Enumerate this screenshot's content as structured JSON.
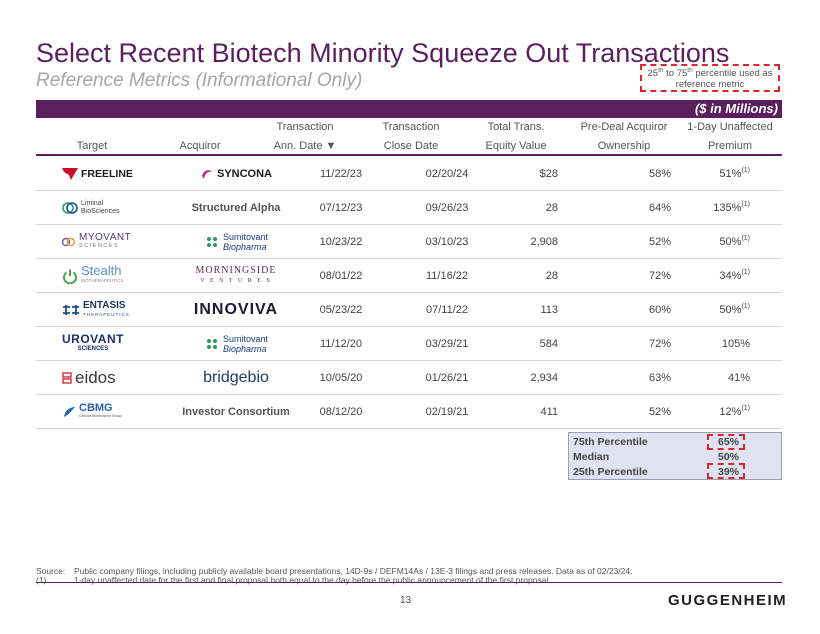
{
  "title": "Select Recent Biotech Minority Squeeze Out Transactions",
  "subtitle": "Reference Metrics (Informational Only)",
  "callout": {
    "part1": "25",
    "sup1": "th",
    "part2": " to 75",
    "sup2": "th",
    "part3": " percentile used as reference metric"
  },
  "units_label": "($ in Millions)",
  "columns": {
    "target": "Target",
    "acquiror": "Acquiror",
    "ann_date": [
      "Transaction",
      "Ann. Date ▼"
    ],
    "close_date": [
      "Transaction",
      "Close Date"
    ],
    "equity": [
      "Total Trans.",
      "Equity Value"
    ],
    "ownership": [
      "Pre-Deal Acquiror",
      "Ownership"
    ],
    "premium": [
      "1-Day Unaffected",
      "Premium"
    ]
  },
  "rows": [
    {
      "target": "FREELINE",
      "target_sub": "",
      "acquiror": "SYNCONA",
      "acq_sub": "",
      "ann_date": "11/22/23",
      "close_date": "02/20/24",
      "equity": "$28",
      "ownership": "58%",
      "premium": "51%",
      "fn": "(1)"
    },
    {
      "target": "Liminal",
      "target_sub": "BioSciences",
      "acquiror": "Structured Alpha",
      "acq_sub": "",
      "ann_date": "07/12/23",
      "close_date": "09/26/23",
      "equity": "28",
      "ownership": "64%",
      "premium": "135%",
      "fn": "(1)"
    },
    {
      "target": "MYOVANT",
      "target_sub": "SCIENCES",
      "acquiror": "Sumitovant",
      "acq_sub": "Biopharma",
      "ann_date": "10/23/22",
      "close_date": "03/10/23",
      "equity": "2,908",
      "ownership": "52%",
      "premium": "50%",
      "fn": "(1)"
    },
    {
      "target": "Stealth",
      "target_sub": "BIOTHERAPEUTICS",
      "acquiror": "MORNINGSIDE",
      "acq_sub": "V E N T U R E S",
      "ann_date": "08/01/22",
      "close_date": "11/16/22",
      "equity": "28",
      "ownership": "72%",
      "premium": "34%",
      "fn": "(1)"
    },
    {
      "target": "ENTASIS",
      "target_sub": "THERAPEUTICS",
      "acquiror": "INNOVIVA",
      "acq_sub": "",
      "ann_date": "05/23/22",
      "close_date": "07/11/22",
      "equity": "113",
      "ownership": "60%",
      "premium": "50%",
      "fn": "(1)"
    },
    {
      "target": "UROVANT",
      "target_sub": "SCIENCES",
      "acquiror": "Sumitovant",
      "acq_sub": "Biopharma",
      "ann_date": "11/12/20",
      "close_date": "03/29/21",
      "equity": "584",
      "ownership": "72%",
      "premium": "105%",
      "fn": ""
    },
    {
      "target": "eidos",
      "target_sub": "",
      "acquiror": "bridgebio",
      "acq_sub": "",
      "ann_date": "10/05/20",
      "close_date": "01/26/21",
      "equity": "2,934",
      "ownership": "63%",
      "premium": "41%",
      "fn": ""
    },
    {
      "target": "CBMG",
      "target_sub": "Cellular Biomedicine Group",
      "acquiror": "Investor Consortium",
      "acq_sub": "",
      "ann_date": "08/12/20",
      "close_date": "02/19/21",
      "equity": "411",
      "ownership": "52%",
      "premium": "12%",
      "fn": "(1)"
    }
  ],
  "percentiles": [
    {
      "label": "75th Percentile",
      "value": "65%"
    },
    {
      "label": "Median",
      "value": "50%"
    },
    {
      "label": "25th Percentile",
      "value": "39%"
    }
  ],
  "footnotes": [
    {
      "key": "Source:",
      "text": "Public company filings, including publicly available board presentations, 14D-9s / DEFM14As / 13E-3 filings and press releases. Data as of 02/23/24."
    },
    {
      "key": "(1)",
      "text": "1-day unaffected date for the first and final proposal both equal to the day before the public announcement of the first proposal."
    }
  ],
  "page_number": "13",
  "brand": "GUGGENHEIM",
  "colors": {
    "accent": "#5b1f5e",
    "highlight": "#d9262b",
    "summary_fill": "#dfe3f1"
  }
}
